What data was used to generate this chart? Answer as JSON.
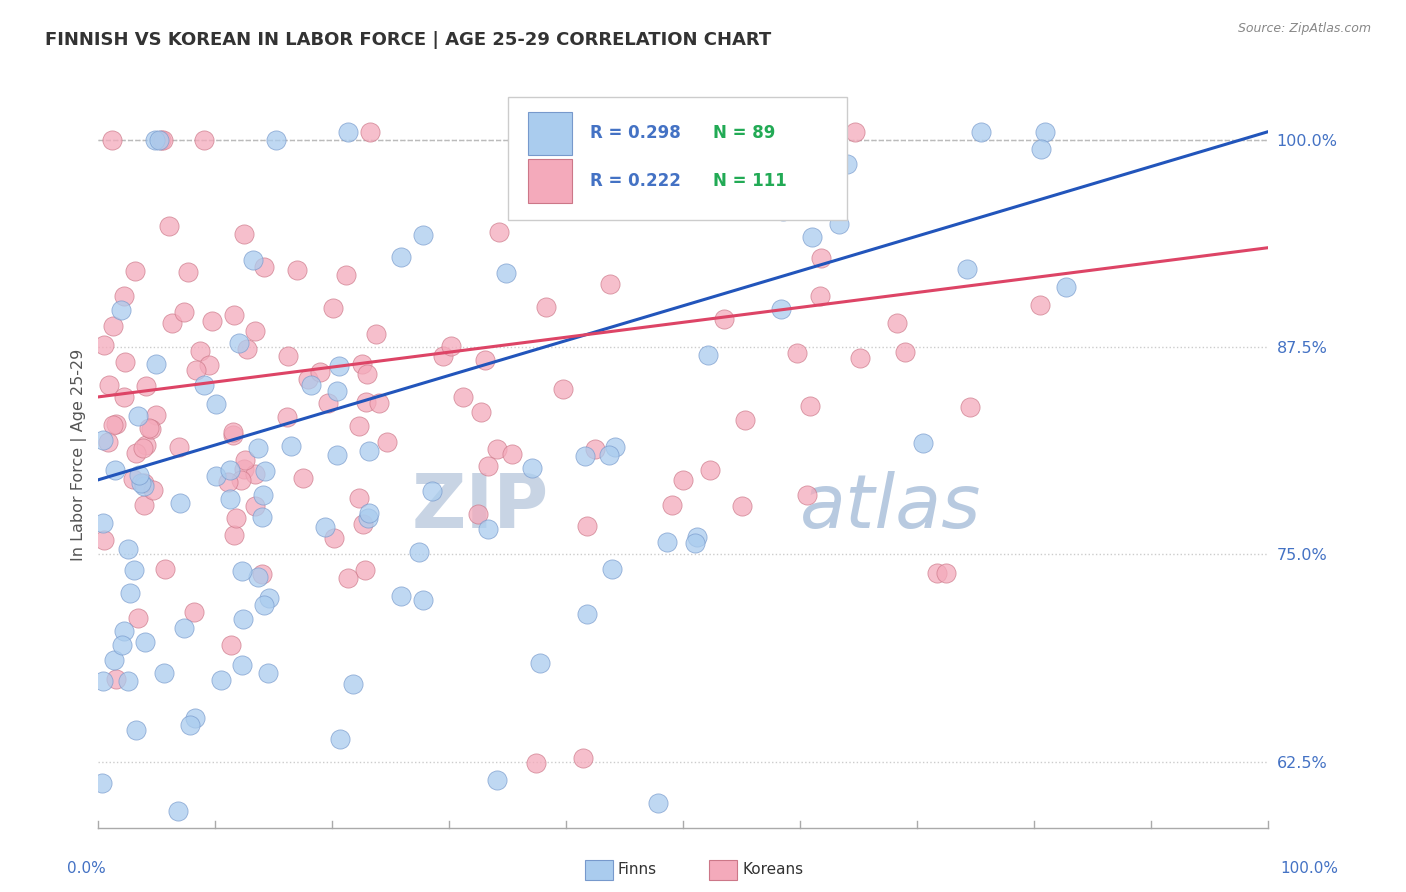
{
  "title": "FINNISH VS KOREAN IN LABOR FORCE | AGE 25-29 CORRELATION CHART",
  "source": "Source: ZipAtlas.com",
  "ylabel": "In Labor Force | Age 25-29",
  "xlim": [
    0.0,
    1.0
  ],
  "ylim": [
    0.585,
    1.035
  ],
  "finn_R": 0.298,
  "finn_N": 89,
  "korean_R": 0.222,
  "korean_N": 111,
  "finn_color": "#aaccee",
  "finn_edge_color": "#7799cc",
  "korean_color": "#f4aabb",
  "korean_edge_color": "#cc7788",
  "finn_line_color": "#2255bb",
  "korean_line_color": "#dd4466",
  "legend_color_R": "#4472c4",
  "legend_color_N": "#22aa55",
  "background_color": "#ffffff",
  "grid_color": "#cccccc",
  "watermark_color": "#ccd4e0",
  "ytick_color": "#4472c4",
  "title_color": "#333333",
  "source_color": "#888888",
  "finn_line_start_y": 0.795,
  "finn_line_end_y": 1.005,
  "korean_line_start_y": 0.845,
  "korean_line_end_y": 0.935
}
